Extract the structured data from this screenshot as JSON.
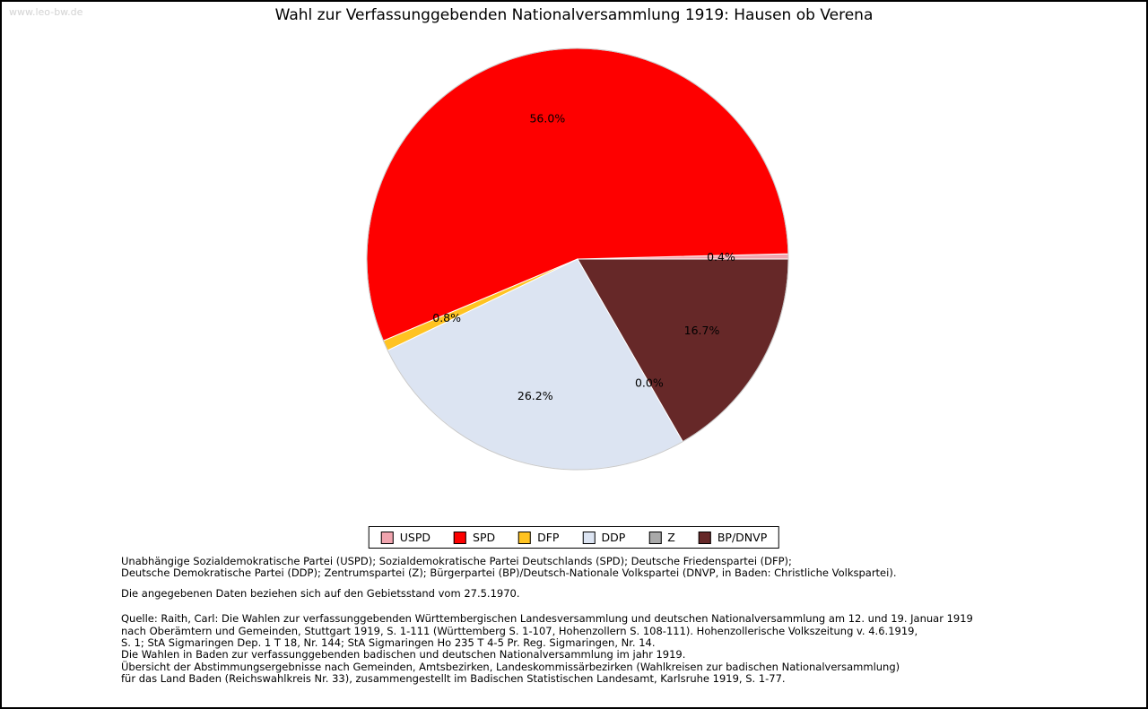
{
  "watermark": "www.leo-bw.de",
  "title": "Wahl zur Verfassunggebenden Nationalversammlung 1919: Hausen ob Verena",
  "chart_data": {
    "type": "pie",
    "title": "Wahl zur Verfassunggebenden Nationalversammlung 1919: Hausen ob Verena",
    "unit": "percent",
    "start_angle_deg": 0,
    "direction": "counterclockwise",
    "legend_position": "bottom",
    "series": [
      {
        "label": "USPD",
        "value": 0.4,
        "color": "#f0a4ae"
      },
      {
        "label": "SPD",
        "value": 56.0,
        "color": "#fe0000"
      },
      {
        "label": "DFP",
        "value": 0.8,
        "color": "#ffc321"
      },
      {
        "label": "DDP",
        "value": 26.2,
        "color": "#dce4f2"
      },
      {
        "label": "Z",
        "value": 0.0,
        "color": "#a9a9a9"
      },
      {
        "label": "BP/DNVP",
        "value": 16.7,
        "color": "#662828"
      }
    ]
  },
  "footnotes": {
    "parties_line1": "Unabhängige Sozialdemokratische Partei (USPD); Sozialdemokratische Partei Deutschlands (SPD); Deutsche Friedenspartei (DFP);",
    "parties_line2": "Deutsche Demokratische Partei (DDP); Zentrumspartei (Z); Bürgerpartei (BP)/Deutsch-Nationale Volkspartei (DNVP, in Baden: Christliche Volkspartei).",
    "status_line": "Die angegebenen Daten beziehen sich auf den Gebietsstand vom 27.5.1970.",
    "source_lines": [
      "Quelle: Raith, Carl: Die Wahlen zur verfassunggebenden Württembergischen Landesversammlung und deutschen Nationalversammlung am 12. und 19. Januar 1919",
      "nach Oberämtern und Gemeinden, Stuttgart 1919, S. 1-111 (Württemberg S. 1-107, Hohenzollern S. 108-111). Hohenzollerische Volkszeitung v. 4.6.1919,",
      "S. 1; StA Sigmaringen Dep. 1 T 18, Nr. 144; StA Sigmaringen Ho 235 T 4-5 Pr. Reg. Sigmaringen, Nr. 14.",
      "Die Wahlen in Baden zur verfassunggebenden badischen und deutschen Nationalversammlung im jahr 1919.",
      "Übersicht der Abstimmungsergebnisse nach Gemeinden, Amtsbezirken, Landeskommissärbezirken (Wahlkreisen zur badischen Nationalversammlung)",
      "für das Land Baden (Reichswahlkreis Nr. 33), zusammengestellt im Badischen Statistischen Landesamt, Karlsruhe 1919, S. 1-77."
    ]
  }
}
